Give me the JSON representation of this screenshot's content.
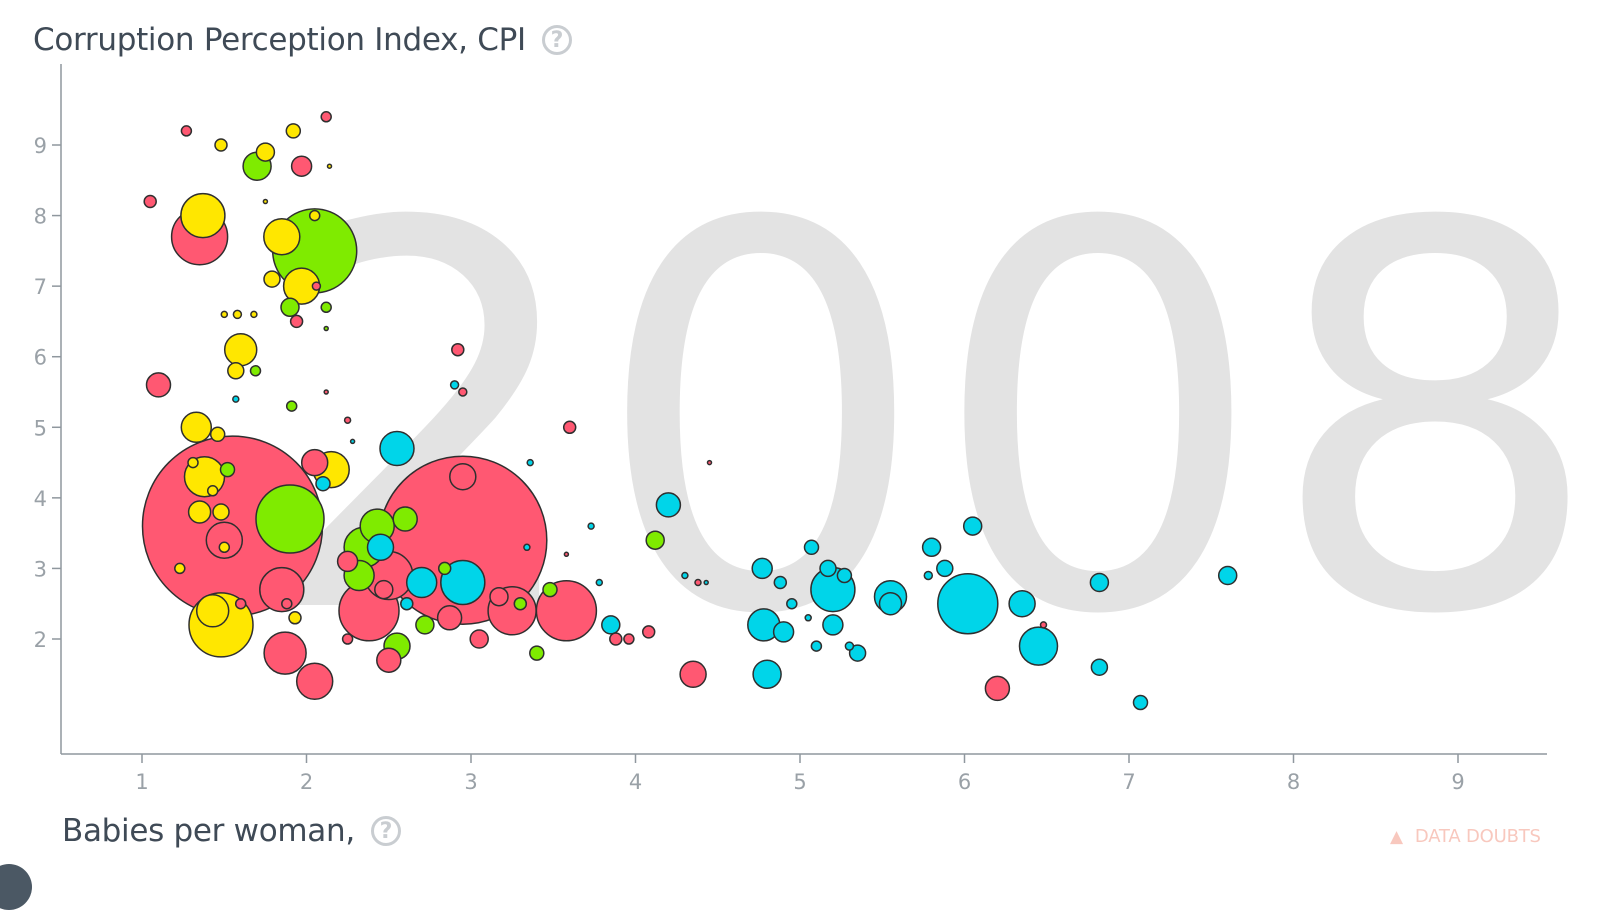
{
  "y_axis_title": "Corruption Perception Index, CPI",
  "x_axis_title": "Babies per woman,",
  "help_symbol": "?",
  "data_doubts_label": "DATA DOUBTS",
  "year": "2008",
  "colors": {
    "red": "#ff5872",
    "yellow": "#ffe700",
    "green": "#7feb00",
    "cyan": "#00d5e9",
    "axis": "#8f979e",
    "year": "#e3e3e3"
  },
  "chart_data": {
    "type": "scatter",
    "subtype": "bubble",
    "year": "2008",
    "xlabel": "Babies per woman,",
    "ylabel": "Corruption Perception Index, CPI",
    "xlim": [
      0.5,
      9.5
    ],
    "ylim": [
      0.5,
      10.2
    ],
    "xticks": [
      1,
      2,
      3,
      4,
      5,
      6,
      7,
      8,
      9
    ],
    "yticks": [
      2,
      3,
      4,
      5,
      6,
      7,
      8,
      9
    ],
    "size_encoding": "population",
    "points": [
      {
        "x": 1.55,
        "y": 3.6,
        "r": 90,
        "c": "red"
      },
      {
        "x": 2.95,
        "y": 3.4,
        "r": 84,
        "c": "red"
      },
      {
        "x": 2.05,
        "y": 7.5,
        "r": 42,
        "c": "green"
      },
      {
        "x": 6.02,
        "y": 2.5,
        "r": 30,
        "c": "cyan"
      },
      {
        "x": 3.58,
        "y": 2.4,
        "r": 30,
        "c": "red"
      },
      {
        "x": 2.38,
        "y": 2.4,
        "r": 30,
        "c": "red"
      },
      {
        "x": 1.9,
        "y": 3.7,
        "r": 34,
        "c": "green"
      },
      {
        "x": 1.48,
        "y": 2.2,
        "r": 32,
        "c": "yellow"
      },
      {
        "x": 1.35,
        "y": 7.7,
        "r": 28,
        "c": "red"
      },
      {
        "x": 2.5,
        "y": 2.9,
        "r": 24,
        "c": "red"
      },
      {
        "x": 3.25,
        "y": 2.4,
        "r": 24,
        "c": "red"
      },
      {
        "x": 1.85,
        "y": 2.7,
        "r": 22,
        "c": "red"
      },
      {
        "x": 1.37,
        "y": 8.0,
        "r": 22,
        "c": "yellow"
      },
      {
        "x": 1.38,
        "y": 4.3,
        "r": 20,
        "c": "yellow"
      },
      {
        "x": 5.2,
        "y": 2.7,
        "r": 22,
        "c": "cyan"
      },
      {
        "x": 2.95,
        "y": 2.8,
        "r": 22,
        "c": "cyan"
      },
      {
        "x": 1.87,
        "y": 1.8,
        "r": 21,
        "c": "red"
      },
      {
        "x": 2.35,
        "y": 3.3,
        "r": 20,
        "c": "green"
      },
      {
        "x": 1.97,
        "y": 7.0,
        "r": 18,
        "c": "yellow"
      },
      {
        "x": 2.15,
        "y": 4.4,
        "r": 18,
        "c": "yellow"
      },
      {
        "x": 1.85,
        "y": 7.7,
        "r": 18,
        "c": "yellow"
      },
      {
        "x": 2.05,
        "y": 1.4,
        "r": 18,
        "c": "red"
      },
      {
        "x": 2.55,
        "y": 4.7,
        "r": 17,
        "c": "cyan"
      },
      {
        "x": 6.45,
        "y": 1.9,
        "r": 19,
        "c": "cyan"
      },
      {
        "x": 5.55,
        "y": 2.6,
        "r": 16,
        "c": "cyan"
      },
      {
        "x": 1.5,
        "y": 3.4,
        "r": 18,
        "c": "red"
      },
      {
        "x": 4.78,
        "y": 2.2,
        "r": 16,
        "c": "cyan"
      },
      {
        "x": 1.33,
        "y": 5.0,
        "r": 15,
        "c": "yellow"
      },
      {
        "x": 1.6,
        "y": 6.1,
        "r": 16,
        "c": "yellow"
      },
      {
        "x": 2.43,
        "y": 3.6,
        "r": 17,
        "c": "green"
      },
      {
        "x": 1.43,
        "y": 2.4,
        "r": 16,
        "c": "yellow"
      },
      {
        "x": 2.7,
        "y": 2.8,
        "r": 15,
        "c": "cyan"
      },
      {
        "x": 1.1,
        "y": 5.6,
        "r": 12,
        "c": "red"
      },
      {
        "x": 1.7,
        "y": 8.7,
        "r": 14,
        "c": "green"
      },
      {
        "x": 2.95,
        "y": 4.3,
        "r": 13,
        "c": "red"
      },
      {
        "x": 2.05,
        "y": 4.5,
        "r": 13,
        "c": "red"
      },
      {
        "x": 2.32,
        "y": 2.9,
        "r": 15,
        "c": "green"
      },
      {
        "x": 2.55,
        "y": 1.9,
        "r": 13,
        "c": "green"
      },
      {
        "x": 2.45,
        "y": 3.3,
        "r": 13,
        "c": "cyan"
      },
      {
        "x": 4.2,
        "y": 3.9,
        "r": 12,
        "c": "cyan"
      },
      {
        "x": 4.35,
        "y": 1.5,
        "r": 13,
        "c": "red"
      },
      {
        "x": 4.8,
        "y": 1.5,
        "r": 14,
        "c": "cyan"
      },
      {
        "x": 6.35,
        "y": 2.5,
        "r": 13,
        "c": "cyan"
      },
      {
        "x": 6.2,
        "y": 1.3,
        "r": 12,
        "c": "red"
      },
      {
        "x": 2.87,
        "y": 2.3,
        "r": 12,
        "c": "red"
      },
      {
        "x": 2.6,
        "y": 3.7,
        "r": 12,
        "c": "green"
      },
      {
        "x": 2.5,
        "y": 1.7,
        "r": 12,
        "c": "red"
      },
      {
        "x": 5.55,
        "y": 2.5,
        "r": 11,
        "c": "cyan"
      },
      {
        "x": 4.9,
        "y": 2.1,
        "r": 10,
        "c": "cyan"
      },
      {
        "x": 4.77,
        "y": 3.0,
        "r": 10,
        "c": "cyan"
      },
      {
        "x": 5.8,
        "y": 3.3,
        "r": 9,
        "c": "cyan"
      },
      {
        "x": 6.05,
        "y": 3.6,
        "r": 9,
        "c": "cyan"
      },
      {
        "x": 5.88,
        "y": 3.0,
        "r": 8,
        "c": "cyan"
      },
      {
        "x": 6.82,
        "y": 2.8,
        "r": 9,
        "c": "cyan"
      },
      {
        "x": 6.82,
        "y": 1.6,
        "r": 8,
        "c": "cyan"
      },
      {
        "x": 7.6,
        "y": 2.9,
        "r": 9,
        "c": "cyan"
      },
      {
        "x": 7.07,
        "y": 1.1,
        "r": 7,
        "c": "cyan"
      },
      {
        "x": 5.07,
        "y": 3.3,
        "r": 7,
        "c": "cyan"
      },
      {
        "x": 5.17,
        "y": 3.0,
        "r": 8,
        "c": "cyan"
      },
      {
        "x": 5.27,
        "y": 2.9,
        "r": 7,
        "c": "cyan"
      },
      {
        "x": 5.2,
        "y": 2.2,
        "r": 10,
        "c": "cyan"
      },
      {
        "x": 5.35,
        "y": 1.8,
        "r": 8,
        "c": "cyan"
      },
      {
        "x": 3.85,
        "y": 2.2,
        "r": 9,
        "c": "cyan"
      },
      {
        "x": 4.12,
        "y": 3.4,
        "r": 9,
        "c": "green"
      },
      {
        "x": 3.6,
        "y": 5.0,
        "r": 6,
        "c": "red"
      },
      {
        "x": 2.92,
        "y": 6.1,
        "r": 6,
        "c": "red"
      },
      {
        "x": 2.1,
        "y": 4.2,
        "r": 7,
        "c": "cyan"
      },
      {
        "x": 1.52,
        "y": 4.4,
        "r": 7,
        "c": "green"
      },
      {
        "x": 1.97,
        "y": 8.7,
        "r": 10,
        "c": "red"
      },
      {
        "x": 1.75,
        "y": 8.9,
        "r": 9,
        "c": "yellow"
      },
      {
        "x": 1.92,
        "y": 9.2,
        "r": 7,
        "c": "yellow"
      },
      {
        "x": 1.27,
        "y": 9.2,
        "r": 5,
        "c": "red"
      },
      {
        "x": 2.12,
        "y": 9.4,
        "r": 5,
        "c": "red"
      },
      {
        "x": 1.48,
        "y": 9.0,
        "r": 6,
        "c": "yellow"
      },
      {
        "x": 1.05,
        "y": 8.2,
        "r": 6,
        "c": "red"
      },
      {
        "x": 1.9,
        "y": 6.7,
        "r": 9,
        "c": "green"
      },
      {
        "x": 1.94,
        "y": 6.5,
        "r": 6,
        "c": "red"
      },
      {
        "x": 1.79,
        "y": 7.1,
        "r": 8,
        "c": "yellow"
      },
      {
        "x": 1.57,
        "y": 5.8,
        "r": 8,
        "c": "yellow"
      },
      {
        "x": 1.46,
        "y": 4.9,
        "r": 7,
        "c": "yellow"
      },
      {
        "x": 1.35,
        "y": 3.8,
        "r": 11,
        "c": "yellow"
      },
      {
        "x": 1.48,
        "y": 3.8,
        "r": 8,
        "c": "yellow"
      },
      {
        "x": 2.47,
        "y": 2.7,
        "r": 9,
        "c": "red"
      },
      {
        "x": 2.72,
        "y": 2.2,
        "r": 9,
        "c": "green"
      },
      {
        "x": 2.25,
        "y": 3.1,
        "r": 10,
        "c": "red"
      },
      {
        "x": 3.05,
        "y": 2.0,
        "r": 9,
        "c": "red"
      },
      {
        "x": 3.17,
        "y": 2.6,
        "r": 9,
        "c": "red"
      },
      {
        "x": 3.48,
        "y": 2.7,
        "r": 7,
        "c": "green"
      },
      {
        "x": 3.4,
        "y": 1.8,
        "r": 7,
        "c": "green"
      },
      {
        "x": 3.3,
        "y": 2.5,
        "r": 6,
        "c": "green"
      },
      {
        "x": 2.61,
        "y": 2.5,
        "r": 6,
        "c": "cyan"
      },
      {
        "x": 2.84,
        "y": 3.0,
        "r": 6,
        "c": "green"
      },
      {
        "x": 3.88,
        "y": 2.0,
        "r": 6,
        "c": "red"
      },
      {
        "x": 4.08,
        "y": 2.1,
        "r": 6,
        "c": "red"
      },
      {
        "x": 3.96,
        "y": 2.0,
        "r": 5,
        "c": "red"
      },
      {
        "x": 1.93,
        "y": 2.3,
        "r": 6,
        "c": "yellow"
      },
      {
        "x": 1.91,
        "y": 5.3,
        "r": 5,
        "c": "green"
      },
      {
        "x": 1.69,
        "y": 5.8,
        "r": 5,
        "c": "green"
      },
      {
        "x": 1.31,
        "y": 4.5,
        "r": 5,
        "c": "yellow"
      },
      {
        "x": 1.23,
        "y": 3.0,
        "r": 5,
        "c": "yellow"
      },
      {
        "x": 1.43,
        "y": 4.1,
        "r": 5,
        "c": "yellow"
      },
      {
        "x": 1.5,
        "y": 3.3,
        "r": 5,
        "c": "yellow"
      },
      {
        "x": 1.88,
        "y": 2.5,
        "r": 5,
        "c": "red"
      },
      {
        "x": 2.05,
        "y": 8.0,
        "r": 5,
        "c": "yellow"
      },
      {
        "x": 2.06,
        "y": 7.0,
        "r": 4,
        "c": "red"
      },
      {
        "x": 2.12,
        "y": 6.7,
        "r": 5,
        "c": "green"
      },
      {
        "x": 1.6,
        "y": 2.5,
        "r": 5,
        "c": "red"
      },
      {
        "x": 2.25,
        "y": 2.0,
        "r": 5,
        "c": "red"
      },
      {
        "x": 2.95,
        "y": 5.5,
        "r": 4,
        "c": "red"
      },
      {
        "x": 2.9,
        "y": 5.6,
        "r": 4,
        "c": "cyan"
      },
      {
        "x": 1.58,
        "y": 6.6,
        "r": 4,
        "c": "yellow"
      },
      {
        "x": 1.5,
        "y": 6.6,
        "r": 3,
        "c": "yellow"
      },
      {
        "x": 1.68,
        "y": 6.6,
        "r": 3,
        "c": "yellow"
      },
      {
        "x": 3.36,
        "y": 4.5,
        "r": 3,
        "c": "cyan"
      },
      {
        "x": 3.34,
        "y": 3.3,
        "r": 3,
        "c": "cyan"
      },
      {
        "x": 3.73,
        "y": 3.6,
        "r": 3,
        "c": "cyan"
      },
      {
        "x": 3.78,
        "y": 2.8,
        "r": 3,
        "c": "cyan"
      },
      {
        "x": 4.3,
        "y": 2.9,
        "r": 3,
        "c": "cyan"
      },
      {
        "x": 4.38,
        "y": 2.8,
        "r": 3,
        "c": "red"
      },
      {
        "x": 4.43,
        "y": 2.8,
        "r": 2,
        "c": "cyan"
      },
      {
        "x": 4.45,
        "y": 4.5,
        "r": 2,
        "c": "red"
      },
      {
        "x": 3.58,
        "y": 3.2,
        "r": 2,
        "c": "red"
      },
      {
        "x": 2.14,
        "y": 8.7,
        "r": 2,
        "c": "yellow"
      },
      {
        "x": 2.12,
        "y": 5.5,
        "r": 2,
        "c": "red"
      },
      {
        "x": 2.25,
        "y": 5.1,
        "r": 3,
        "c": "red"
      },
      {
        "x": 2.28,
        "y": 4.8,
        "r": 2,
        "c": "cyan"
      },
      {
        "x": 1.75,
        "y": 8.2,
        "r": 2,
        "c": "yellow"
      },
      {
        "x": 2.12,
        "y": 6.4,
        "r": 2,
        "c": "green"
      },
      {
        "x": 1.57,
        "y": 5.4,
        "r": 3,
        "c": "cyan"
      },
      {
        "x": 4.95,
        "y": 2.5,
        "r": 5,
        "c": "cyan"
      },
      {
        "x": 5.1,
        "y": 1.9,
        "r": 5,
        "c": "cyan"
      },
      {
        "x": 5.3,
        "y": 1.9,
        "r": 4,
        "c": "cyan"
      },
      {
        "x": 4.88,
        "y": 2.8,
        "r": 6,
        "c": "cyan"
      },
      {
        "x": 5.05,
        "y": 2.3,
        "r": 3,
        "c": "cyan"
      },
      {
        "x": 6.48,
        "y": 2.2,
        "r": 3,
        "c": "red"
      },
      {
        "x": 5.78,
        "y": 2.9,
        "r": 4,
        "c": "cyan"
      }
    ]
  }
}
